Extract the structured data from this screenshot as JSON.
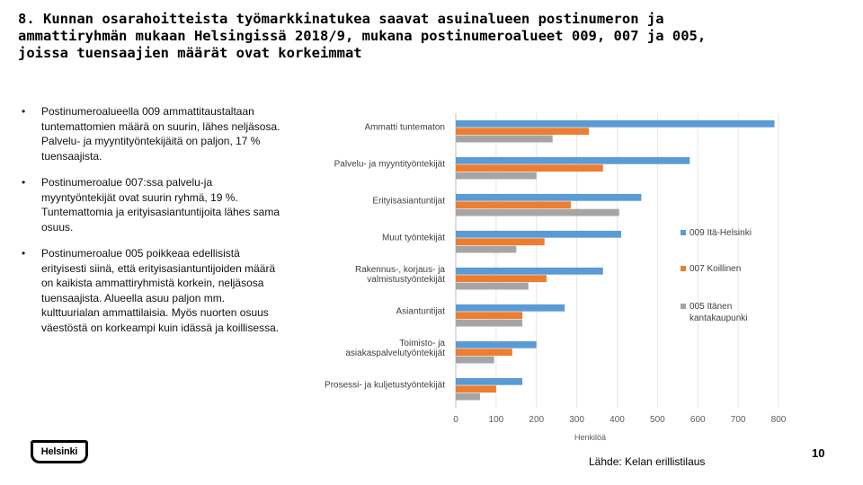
{
  "slide": {
    "title": "8. Kunnan osarahoitteista työmarkkinatukea saavat asuinalueen postinumeron ja\nammattiryhmän mukaan Helsingissä 2018/9, mukana postinumeroalueet 009, 007 ja 005,\njoissa tuensaajien määrät ovat korkeimmat",
    "bullets": [
      "Postinumeroalueella 009 ammattitaustaltaan tuntemattomien määrä on suurin, lähes neljäsosa. Palvelu- ja myyntityöntekijäitä on paljon, 17 % tuensaajista.",
      "Postinumeroalue 007:ssa palvelu-ja myyntyöntekijät ovat suurin ryhmä, 19 %. Tuntemattomia ja erityisasiantuntijoita lähes sama osuus.",
      "Postinumeroalue 005 poikkeaa edellisistä erityisesti siinä, että erityisasiantuntijoiden määrä on kaikista ammattiryhmistä korkein, neljäsosa tuensaajista. Alueella asuu paljon mm. kulttuurialan ammattilaisia. Myös nuorten osuus väestöstä on korkeampi kuin idässä ja koillisessa."
    ],
    "bullet_marker": "•",
    "logo_text": "Helsinki",
    "source": "Lähde: Kelan erillistilaus",
    "page_number": "10"
  },
  "chart_data": {
    "type": "bar",
    "orientation": "horizontal",
    "title": "",
    "categories": [
      "Ammatti tuntematon",
      "Palvelu- ja myyntityöntekijät",
      "Erityisasiantuntijat",
      "Muut työntekijät",
      "Rakennus-, korjaus- ja\nvalmistustyöntekijät",
      "Asiantuntijat",
      "Toimisto- ja\nasiakaspalvelutyöntekijät",
      "Prosessi- ja kuljetustyöntekijät"
    ],
    "series": [
      {
        "name": "009 Itä-Helsinki",
        "color": "#5b9bd5",
        "values": [
          790,
          580,
          460,
          410,
          365,
          270,
          200,
          165
        ]
      },
      {
        "name": "007 Koillinen",
        "color": "#ed7d31",
        "values": [
          330,
          365,
          285,
          220,
          225,
          165,
          140,
          100
        ]
      },
      {
        "name": "005 Itänen\nkantakaupunki",
        "color": "#a5a5a5",
        "values": [
          240,
          200,
          405,
          150,
          180,
          165,
          95,
          60
        ]
      }
    ],
    "xlabel": "Henkilöä",
    "xlim": [
      0,
      800
    ],
    "xticks": [
      0,
      100,
      200,
      300,
      400,
      500,
      600,
      700,
      800
    ],
    "legend_position": "right"
  }
}
